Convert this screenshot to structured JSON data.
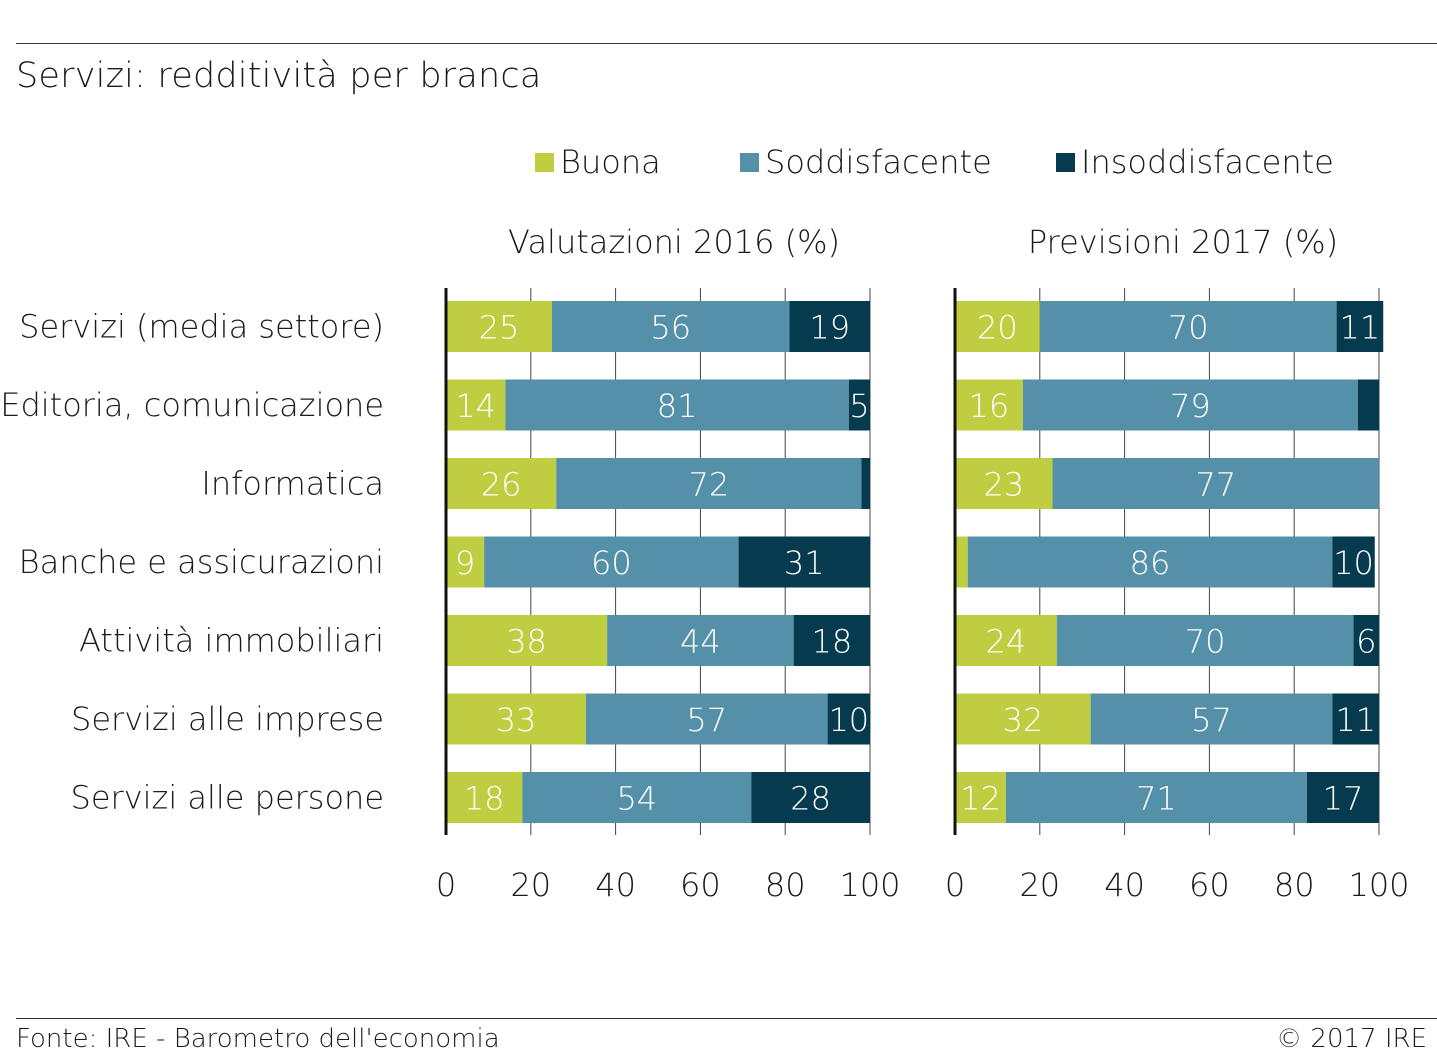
{
  "title": "Servizi: redditività per branca",
  "footer": {
    "source": "Fonte: IRE - Barometro dell'economia",
    "copyright": "© 2017 IRE"
  },
  "colors": {
    "Buona": "#bfcd40",
    "Soddisfacente": "#5590a9",
    "Insoddisfacente": "#063a4e"
  },
  "legend": [
    {
      "label": "Buona",
      "color": "#bfcd40"
    },
    {
      "label": "Soddisfacente",
      "color": "#5590a9"
    },
    {
      "label": "Insoddisfacente",
      "color": "#063a4e"
    }
  ],
  "chart_data": [
    {
      "type": "bar",
      "orientation": "horizontal",
      "stacked": true,
      "title": "Valutazioni 2016 (%)",
      "categories": [
        "Servizi (media settore)",
        "Editoria, comunicazione",
        "Informatica",
        "Banche e assicurazioni",
        "Attività immobiliari",
        "Servizi alle imprese",
        "Servizi alle persone"
      ],
      "series": [
        {
          "name": "Buona",
          "values": [
            25,
            14,
            26,
            9,
            38,
            33,
            18
          ],
          "labels": [
            "25",
            "14",
            "26",
            "9",
            "38",
            "33",
            "18"
          ]
        },
        {
          "name": "Soddisfacente",
          "values": [
            56,
            81,
            72,
            60,
            44,
            57,
            54
          ],
          "labels": [
            "56",
            "81",
            "72",
            "60",
            "44",
            "57",
            "54"
          ]
        },
        {
          "name": "Insoddisfacente",
          "values": [
            19,
            5,
            2,
            31,
            18,
            10,
            28
          ],
          "labels": [
            "19",
            "5",
            "",
            "31",
            "18",
            "10",
            "28"
          ]
        }
      ],
      "xlim": [
        0,
        100
      ],
      "xticks": [
        "0",
        "20",
        "40",
        "60",
        "80",
        "100"
      ],
      "grid": true,
      "legend": "top"
    },
    {
      "type": "bar",
      "orientation": "horizontal",
      "stacked": true,
      "title": "Previsioni 2017 (%)",
      "categories": [
        "Servizi (media settore)",
        "Editoria, comunicazione",
        "Informatica",
        "Banche e assicurazioni",
        "Attività immobiliari",
        "Servizi alle imprese",
        "Servizi alle persone"
      ],
      "series": [
        {
          "name": "Buona",
          "values": [
            20,
            16,
            23,
            3,
            24,
            32,
            12
          ],
          "labels": [
            "20",
            "16",
            "23",
            "",
            "24",
            "32",
            "12"
          ]
        },
        {
          "name": "Soddisfacente",
          "values": [
            70,
            79,
            77,
            86,
            70,
            57,
            71
          ],
          "labels": [
            "70",
            "79",
            "77",
            "86",
            "70",
            "57",
            "71"
          ]
        },
        {
          "name": "Insoddisfacente",
          "values": [
            11,
            5,
            0,
            10,
            6,
            11,
            17
          ],
          "labels": [
            "11",
            "",
            "",
            "10",
            "6",
            "11",
            "17"
          ]
        }
      ],
      "xlim": [
        0,
        100
      ],
      "xticks": [
        "0",
        "20",
        "40",
        "60",
        "80",
        "100"
      ],
      "grid": true,
      "legend": "top"
    }
  ]
}
